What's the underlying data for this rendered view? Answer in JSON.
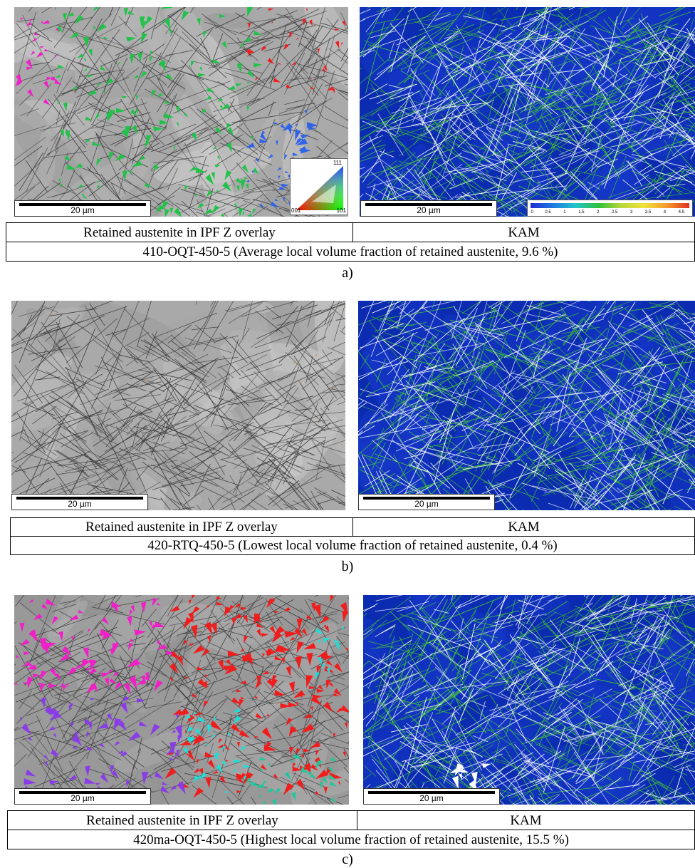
{
  "panels": [
    {
      "left_caption": "Retained austenite in IPF Z overlay",
      "right_caption": "KAM",
      "sample_caption": "410-OQT-450-5 (Average local volume fraction of retained austenite, 9.6 %)",
      "panel_label": "a)",
      "left_scale": "20 µm",
      "right_scale": "20 µm"
    },
    {
      "left_caption": "Retained austenite in IPF Z overlay",
      "right_caption": "KAM",
      "sample_caption": "420-RTQ-450-5 (Lowest local volume fraction of retained austenite, 0.4 %)",
      "panel_label": "b)",
      "left_scale": "20 µm",
      "right_scale": "20 µm"
    },
    {
      "left_caption": "Retained austenite in IPF Z overlay",
      "right_caption": "KAM",
      "sample_caption": "420ma-OQT-450-5 (Highest local volume fraction of retained austenite, 15.5 %)",
      "panel_label": "c)",
      "left_scale": "20 µm",
      "right_scale": "20 µm"
    }
  ],
  "ipf_key": {
    "top": "111",
    "left": "001",
    "right": "101"
  },
  "kam_colorbar": {
    "ticks": [
      "0",
      "0.5",
      "1",
      "1.5",
      "2",
      "2.5",
      "3",
      "3.5",
      "4",
      "4.5"
    ]
  },
  "colors": {
    "kam_blue": "#0b2bb0",
    "kam_green": "#3fbf3a",
    "ipf_green": "#22c24a",
    "ipf_red": "#f01d1d",
    "ipf_magenta": "#f01fc8",
    "ipf_blue": "#2f63e8",
    "ipf_purple": "#8a3ce8",
    "ipf_cyan": "#19e0d8",
    "sem_gray": "#a9a9a9"
  }
}
